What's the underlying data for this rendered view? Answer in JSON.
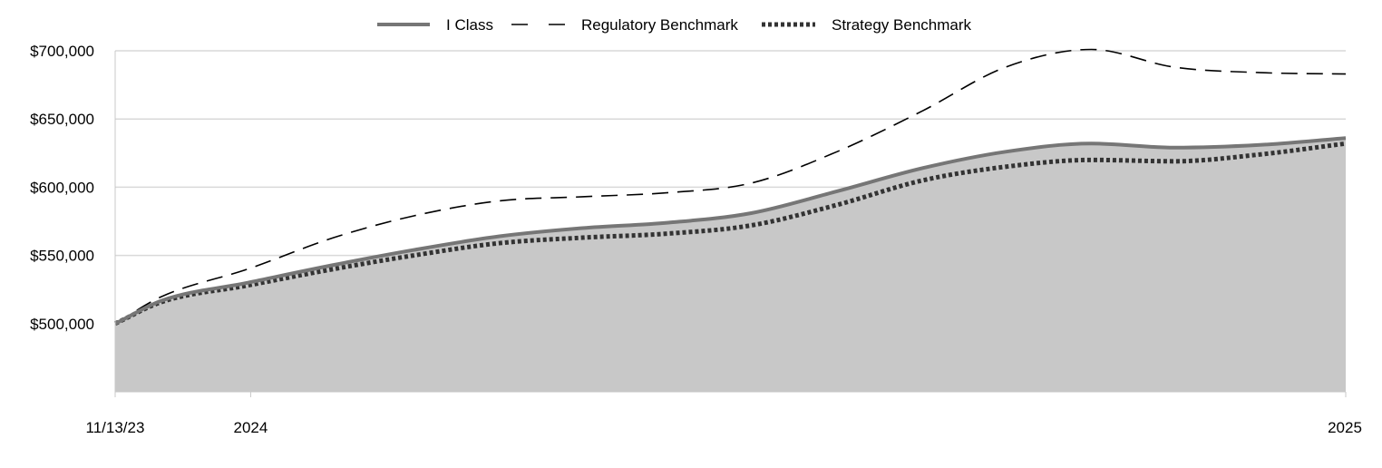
{
  "chart_data": {
    "type": "area",
    "title": "",
    "xlabel": "",
    "ylabel": "",
    "x_tick_labels": [
      "11/13/23",
      "2024",
      "2025"
    ],
    "y_tick_labels": [
      "$500,000",
      "$550,000",
      "$600,000",
      "$650,000",
      "$700,000"
    ],
    "y_ticks": [
      500000,
      550000,
      600000,
      650000,
      700000
    ],
    "ylim": [
      450000,
      700000
    ],
    "xlim": [
      "2023-11-13",
      "2025-01-31"
    ],
    "grid": true,
    "legend_position": "top-center",
    "x": [
      "2023-11-13",
      "2023-11-30",
      "2023-12-31",
      "2024-01-31",
      "2024-02-29",
      "2024-03-31",
      "2024-04-30",
      "2024-05-31",
      "2024-06-30",
      "2024-07-31",
      "2024-08-31",
      "2024-09-30",
      "2024-10-31",
      "2024-11-30",
      "2024-12-31",
      "2025-01-31"
    ],
    "series": [
      {
        "name": "I Class",
        "style": "solid",
        "color": "#767676",
        "fill": "#c8c8c8",
        "values": [
          500000,
          517000,
          530000,
          543000,
          554000,
          564000,
          570000,
          574000,
          581000,
          597000,
          614000,
          626000,
          632000,
          629000,
          631000,
          636000
        ]
      },
      {
        "name": "Regulatory Benchmark",
        "style": "dashed",
        "color": "#000000",
        "values": [
          500000,
          520000,
          540000,
          563000,
          579000,
          590000,
          593000,
          596000,
          603000,
          626000,
          656000,
          688000,
          701000,
          688000,
          684000,
          683000
        ]
      },
      {
        "name": "Strategy Benchmark",
        "style": "dotted",
        "color": "#333333",
        "values": [
          500000,
          516000,
          528000,
          540000,
          550000,
          559000,
          563000,
          566000,
          572000,
          587000,
          605000,
          615000,
          620000,
          619000,
          624000,
          632000
        ]
      }
    ]
  }
}
